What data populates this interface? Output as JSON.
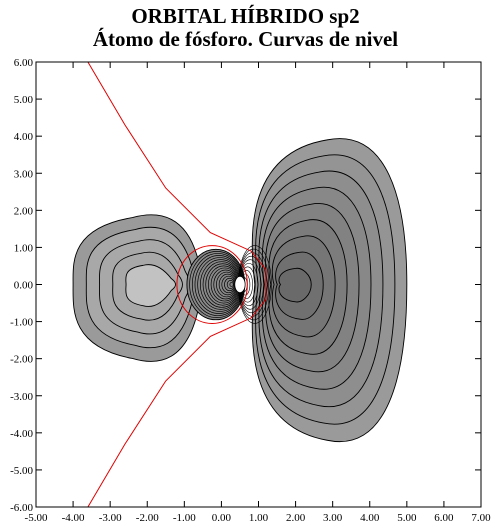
{
  "chart_data": {
    "type": "contour",
    "title": "ORBITAL HÍBRIDO sp2",
    "subtitle": "Átomo de fósforo. Curvas de nivel",
    "xlabel": "",
    "ylabel": "",
    "xlim": [
      -5,
      7
    ],
    "ylim": [
      -6,
      6
    ],
    "x_ticks": [
      "-5.00",
      "-4.00",
      "-3.00",
      "-2.00",
      "-1.00",
      "0.00",
      "1.00",
      "2.00",
      "3.00",
      "4.00",
      "5.00",
      "6.00",
      "7.00"
    ],
    "y_ticks": [
      "6.00",
      "5.00",
      "4.00",
      "3.00",
      "2.00",
      "1.00",
      "0.00",
      "-1.00",
      "-2.00",
      "-3.00",
      "-4.00",
      "-5.00",
      "-6.00"
    ],
    "grid": false,
    "nucleus": [
      0,
      0
    ],
    "lobes": [
      {
        "side": "left",
        "center": [
          -2.0,
          0.0
        ],
        "outer_extent_x": [
          -4.0,
          -0.6
        ],
        "outer_extent_y": [
          -2.1,
          1.9
        ]
      },
      {
        "side": "right",
        "center": [
          2.1,
          0.0
        ],
        "outer_extent_x": [
          0.9,
          5.0
        ],
        "outer_extent_y": [
          -4.2,
          3.9
        ]
      }
    ],
    "nodal_line": [
      [
        -3.6,
        6.0
      ],
      [
        -2.6,
        4.3
      ],
      [
        -1.5,
        2.6
      ],
      [
        -0.3,
        1.4
      ],
      [
        0.8,
        0.9
      ],
      [
        1.2,
        0.4
      ],
      [
        1.2,
        -0.4
      ],
      [
        0.8,
        -0.9
      ],
      [
        -0.3,
        -1.4
      ],
      [
        -1.5,
        -2.6
      ],
      [
        -2.6,
        -4.3
      ],
      [
        -3.6,
        -6.0
      ]
    ],
    "colors": {
      "outer_fill": "#9a9a9a",
      "inner_fill": "#c2c2c2",
      "right_core_fill": "#6a6a6a",
      "contour_line": "#000000",
      "nodal_line": "#e00000",
      "nucleus_fill": "#ffffff"
    }
  }
}
